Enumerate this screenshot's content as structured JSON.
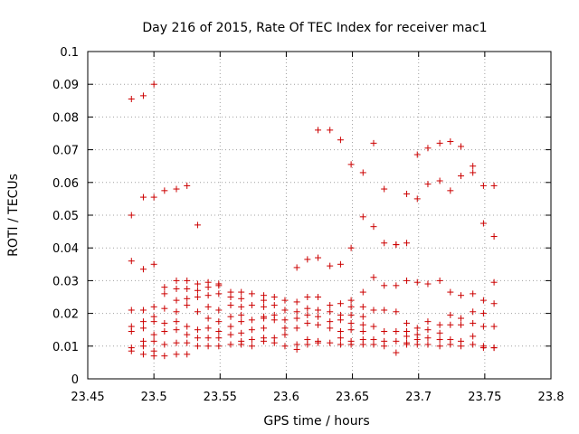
{
  "chart_data": {
    "type": "scatter",
    "title": "Day 216 of 2015, Rate Of TEC Index for receiver mac1",
    "xlabel": "GPS time / hours",
    "ylabel": "ROTI / TECUs",
    "xlim": [
      23.45,
      23.8
    ],
    "ylim": [
      0,
      0.1
    ],
    "xticks": [
      "23.45",
      "23.5",
      "23.55",
      "23.6",
      "23.65",
      "23.7",
      "23.75",
      "23.8"
    ],
    "yticks": [
      "0",
      "0.01",
      "0.02",
      "0.03",
      "0.04",
      "0.05",
      "0.06",
      "0.07",
      "0.08",
      "0.09",
      "0.1"
    ],
    "grid": true,
    "marker": "+",
    "color": "#cc0000",
    "series": [
      {
        "name": "ROTI",
        "points": [
          [
            23.483,
            0.0855
          ],
          [
            23.483,
            0.05
          ],
          [
            23.483,
            0.036
          ],
          [
            23.483,
            0.021
          ],
          [
            23.483,
            0.016
          ],
          [
            23.483,
            0.0145
          ],
          [
            23.483,
            0.0095
          ],
          [
            23.483,
            0.0085
          ],
          [
            23.492,
            0.0865
          ],
          [
            23.492,
            0.0555
          ],
          [
            23.492,
            0.0335
          ],
          [
            23.492,
            0.021
          ],
          [
            23.492,
            0.0175
          ],
          [
            23.492,
            0.0155
          ],
          [
            23.492,
            0.0115
          ],
          [
            23.492,
            0.01
          ],
          [
            23.492,
            0.0075
          ],
          [
            23.5,
            0.09
          ],
          [
            23.5,
            0.0555
          ],
          [
            23.5,
            0.035
          ],
          [
            23.5,
            0.022
          ],
          [
            23.5,
            0.019
          ],
          [
            23.5,
            0.0175
          ],
          [
            23.5,
            0.0135
          ],
          [
            23.5,
            0.0115
          ],
          [
            23.5,
            0.0085
          ],
          [
            23.5,
            0.007
          ],
          [
            23.508,
            0.0575
          ],
          [
            23.508,
            0.028
          ],
          [
            23.508,
            0.026
          ],
          [
            23.508,
            0.0215
          ],
          [
            23.508,
            0.017
          ],
          [
            23.508,
            0.0145
          ],
          [
            23.508,
            0.0105
          ],
          [
            23.508,
            0.007
          ],
          [
            23.517,
            0.058
          ],
          [
            23.517,
            0.03
          ],
          [
            23.517,
            0.0275
          ],
          [
            23.517,
            0.024
          ],
          [
            23.517,
            0.0205
          ],
          [
            23.517,
            0.0175
          ],
          [
            23.517,
            0.015
          ],
          [
            23.517,
            0.011
          ],
          [
            23.517,
            0.0075
          ],
          [
            23.525,
            0.059
          ],
          [
            23.525,
            0.03
          ],
          [
            23.525,
            0.0275
          ],
          [
            23.525,
            0.0245
          ],
          [
            23.525,
            0.0225
          ],
          [
            23.525,
            0.016
          ],
          [
            23.525,
            0.0135
          ],
          [
            23.525,
            0.011
          ],
          [
            23.525,
            0.0075
          ],
          [
            23.533,
            0.047
          ],
          [
            23.533,
            0.029
          ],
          [
            23.533,
            0.027
          ],
          [
            23.533,
            0.025
          ],
          [
            23.533,
            0.0205
          ],
          [
            23.533,
            0.015
          ],
          [
            23.533,
            0.0125
          ],
          [
            23.533,
            0.01
          ],
          [
            23.541,
            0.0295
          ],
          [
            23.541,
            0.028
          ],
          [
            23.541,
            0.0255
          ],
          [
            23.541,
            0.022
          ],
          [
            23.541,
            0.0185
          ],
          [
            23.541,
            0.0155
          ],
          [
            23.541,
            0.0125
          ],
          [
            23.541,
            0.01
          ],
          [
            23.549,
            0.029
          ],
          [
            23.549,
            0.0285
          ],
          [
            23.549,
            0.026
          ],
          [
            23.549,
            0.021
          ],
          [
            23.549,
            0.0175
          ],
          [
            23.549,
            0.0145
          ],
          [
            23.549,
            0.0125
          ],
          [
            23.549,
            0.01
          ],
          [
            23.558,
            0.0265
          ],
          [
            23.558,
            0.025
          ],
          [
            23.558,
            0.0225
          ],
          [
            23.558,
            0.019
          ],
          [
            23.558,
            0.016
          ],
          [
            23.558,
            0.0135
          ],
          [
            23.558,
            0.0105
          ],
          [
            23.566,
            0.0265
          ],
          [
            23.566,
            0.0245
          ],
          [
            23.566,
            0.022
          ],
          [
            23.566,
            0.0195
          ],
          [
            23.566,
            0.0175
          ],
          [
            23.566,
            0.014
          ],
          [
            23.566,
            0.0115
          ],
          [
            23.566,
            0.0105
          ],
          [
            23.574,
            0.026
          ],
          [
            23.574,
            0.0225
          ],
          [
            23.574,
            0.018
          ],
          [
            23.574,
            0.015
          ],
          [
            23.574,
            0.012
          ],
          [
            23.574,
            0.01
          ],
          [
            23.583,
            0.0255
          ],
          [
            23.583,
            0.024
          ],
          [
            23.583,
            0.022
          ],
          [
            23.583,
            0.019
          ],
          [
            23.583,
            0.0185
          ],
          [
            23.583,
            0.0155
          ],
          [
            23.583,
            0.0125
          ],
          [
            23.583,
            0.0115
          ],
          [
            23.591,
            0.025
          ],
          [
            23.591,
            0.0225
          ],
          [
            23.591,
            0.0195
          ],
          [
            23.591,
            0.018
          ],
          [
            23.591,
            0.0125
          ],
          [
            23.591,
            0.011
          ],
          [
            23.599,
            0.024
          ],
          [
            23.599,
            0.021
          ],
          [
            23.599,
            0.018
          ],
          [
            23.599,
            0.0155
          ],
          [
            23.599,
            0.0135
          ],
          [
            23.599,
            0.01
          ],
          [
            23.608,
            0.034
          ],
          [
            23.608,
            0.0235
          ],
          [
            23.608,
            0.0205
          ],
          [
            23.608,
            0.0185
          ],
          [
            23.608,
            0.0155
          ],
          [
            23.608,
            0.0105
          ],
          [
            23.608,
            0.009
          ],
          [
            23.616,
            0.0365
          ],
          [
            23.616,
            0.025
          ],
          [
            23.616,
            0.0215
          ],
          [
            23.616,
            0.0195
          ],
          [
            23.616,
            0.017
          ],
          [
            23.616,
            0.012
          ],
          [
            23.616,
            0.0105
          ],
          [
            23.624,
            0.076
          ],
          [
            23.624,
            0.037
          ],
          [
            23.624,
            0.025
          ],
          [
            23.624,
            0.021
          ],
          [
            23.624,
            0.019
          ],
          [
            23.624,
            0.0165
          ],
          [
            23.624,
            0.0115
          ],
          [
            23.624,
            0.011
          ],
          [
            23.633,
            0.076
          ],
          [
            23.633,
            0.0345
          ],
          [
            23.633,
            0.0225
          ],
          [
            23.633,
            0.0205
          ],
          [
            23.633,
            0.0175
          ],
          [
            23.633,
            0.0155
          ],
          [
            23.633,
            0.011
          ],
          [
            23.641,
            0.073
          ],
          [
            23.641,
            0.035
          ],
          [
            23.641,
            0.023
          ],
          [
            23.641,
            0.0195
          ],
          [
            23.641,
            0.018
          ],
          [
            23.641,
            0.0145
          ],
          [
            23.641,
            0.0125
          ],
          [
            23.641,
            0.0105
          ],
          [
            23.649,
            0.0655
          ],
          [
            23.649,
            0.04
          ],
          [
            23.649,
            0.024
          ],
          [
            23.649,
            0.022
          ],
          [
            23.649,
            0.0195
          ],
          [
            23.649,
            0.017
          ],
          [
            23.649,
            0.015
          ],
          [
            23.649,
            0.0115
          ],
          [
            23.649,
            0.0105
          ],
          [
            23.658,
            0.063
          ],
          [
            23.658,
            0.0495
          ],
          [
            23.658,
            0.0265
          ],
          [
            23.658,
            0.022
          ],
          [
            23.658,
            0.019
          ],
          [
            23.658,
            0.0165
          ],
          [
            23.658,
            0.0145
          ],
          [
            23.658,
            0.012
          ],
          [
            23.658,
            0.0105
          ],
          [
            23.666,
            0.072
          ],
          [
            23.666,
            0.0465
          ],
          [
            23.666,
            0.031
          ],
          [
            23.666,
            0.021
          ],
          [
            23.666,
            0.016
          ],
          [
            23.666,
            0.012
          ],
          [
            23.666,
            0.0105
          ],
          [
            23.674,
            0.058
          ],
          [
            23.674,
            0.0415
          ],
          [
            23.674,
            0.0285
          ],
          [
            23.674,
            0.021
          ],
          [
            23.674,
            0.0145
          ],
          [
            23.674,
            0.0115
          ],
          [
            23.674,
            0.01
          ],
          [
            23.683,
            0.041
          ],
          [
            23.683,
            0.041
          ],
          [
            23.683,
            0.0285
          ],
          [
            23.683,
            0.0205
          ],
          [
            23.683,
            0.0145
          ],
          [
            23.683,
            0.0115
          ],
          [
            23.683,
            0.008
          ],
          [
            23.691,
            0.0565
          ],
          [
            23.691,
            0.0415
          ],
          [
            23.691,
            0.03
          ],
          [
            23.691,
            0.017
          ],
          [
            23.691,
            0.0145
          ],
          [
            23.691,
            0.013
          ],
          [
            23.691,
            0.011
          ],
          [
            23.691,
            0.0105
          ],
          [
            23.699,
            0.0685
          ],
          [
            23.699,
            0.055
          ],
          [
            23.699,
            0.0295
          ],
          [
            23.699,
            0.0155
          ],
          [
            23.699,
            0.0135
          ],
          [
            23.699,
            0.012
          ],
          [
            23.699,
            0.0105
          ],
          [
            23.707,
            0.0705
          ],
          [
            23.707,
            0.0595
          ],
          [
            23.707,
            0.029
          ],
          [
            23.707,
            0.0175
          ],
          [
            23.707,
            0.015
          ],
          [
            23.707,
            0.0125
          ],
          [
            23.707,
            0.0105
          ],
          [
            23.716,
            0.072
          ],
          [
            23.716,
            0.0605
          ],
          [
            23.716,
            0.03
          ],
          [
            23.716,
            0.0165
          ],
          [
            23.716,
            0.014
          ],
          [
            23.716,
            0.012
          ],
          [
            23.716,
            0.01
          ],
          [
            23.724,
            0.0725
          ],
          [
            23.724,
            0.0575
          ],
          [
            23.724,
            0.0265
          ],
          [
            23.724,
            0.0195
          ],
          [
            23.724,
            0.0165
          ],
          [
            23.724,
            0.012
          ],
          [
            23.724,
            0.0105
          ],
          [
            23.732,
            0.071
          ],
          [
            23.732,
            0.062
          ],
          [
            23.732,
            0.0255
          ],
          [
            23.732,
            0.0185
          ],
          [
            23.732,
            0.0165
          ],
          [
            23.732,
            0.0115
          ],
          [
            23.732,
            0.01
          ],
          [
            23.741,
            0.065
          ],
          [
            23.741,
            0.063
          ],
          [
            23.741,
            0.026
          ],
          [
            23.741,
            0.0205
          ],
          [
            23.741,
            0.017
          ],
          [
            23.741,
            0.013
          ],
          [
            23.741,
            0.0105
          ],
          [
            23.749,
            0.059
          ],
          [
            23.749,
            0.0475
          ],
          [
            23.749,
            0.024
          ],
          [
            23.749,
            0.02
          ],
          [
            23.749,
            0.016
          ],
          [
            23.749,
            0.01
          ],
          [
            23.749,
            0.0095
          ],
          [
            23.757,
            0.059
          ],
          [
            23.757,
            0.0435
          ],
          [
            23.757,
            0.0295
          ],
          [
            23.757,
            0.023
          ],
          [
            23.757,
            0.016
          ],
          [
            23.757,
            0.0095
          ],
          [
            23.757,
            0.0095
          ]
        ]
      }
    ]
  }
}
